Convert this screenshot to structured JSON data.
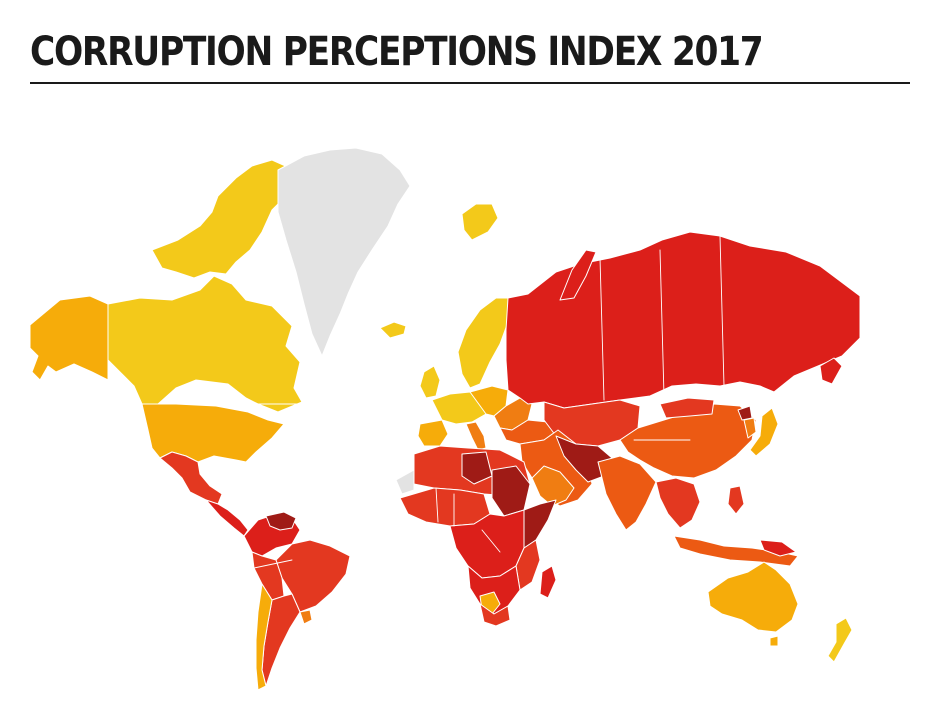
{
  "page": {
    "title": "CORRUPTION PERCEPTIONS INDEX 2017"
  },
  "map": {
    "colors": {
      "very_clean": "#f3c91a",
      "clean": "#f6ac0a",
      "moderate": "#f07d12",
      "corrupt": "#ec5a13",
      "highly_corrupt": "#e33820",
      "very_corrupt": "#dc1f1a",
      "most_corrupt": "#9f1b16",
      "no_data": "#e3e3e3"
    }
  }
}
